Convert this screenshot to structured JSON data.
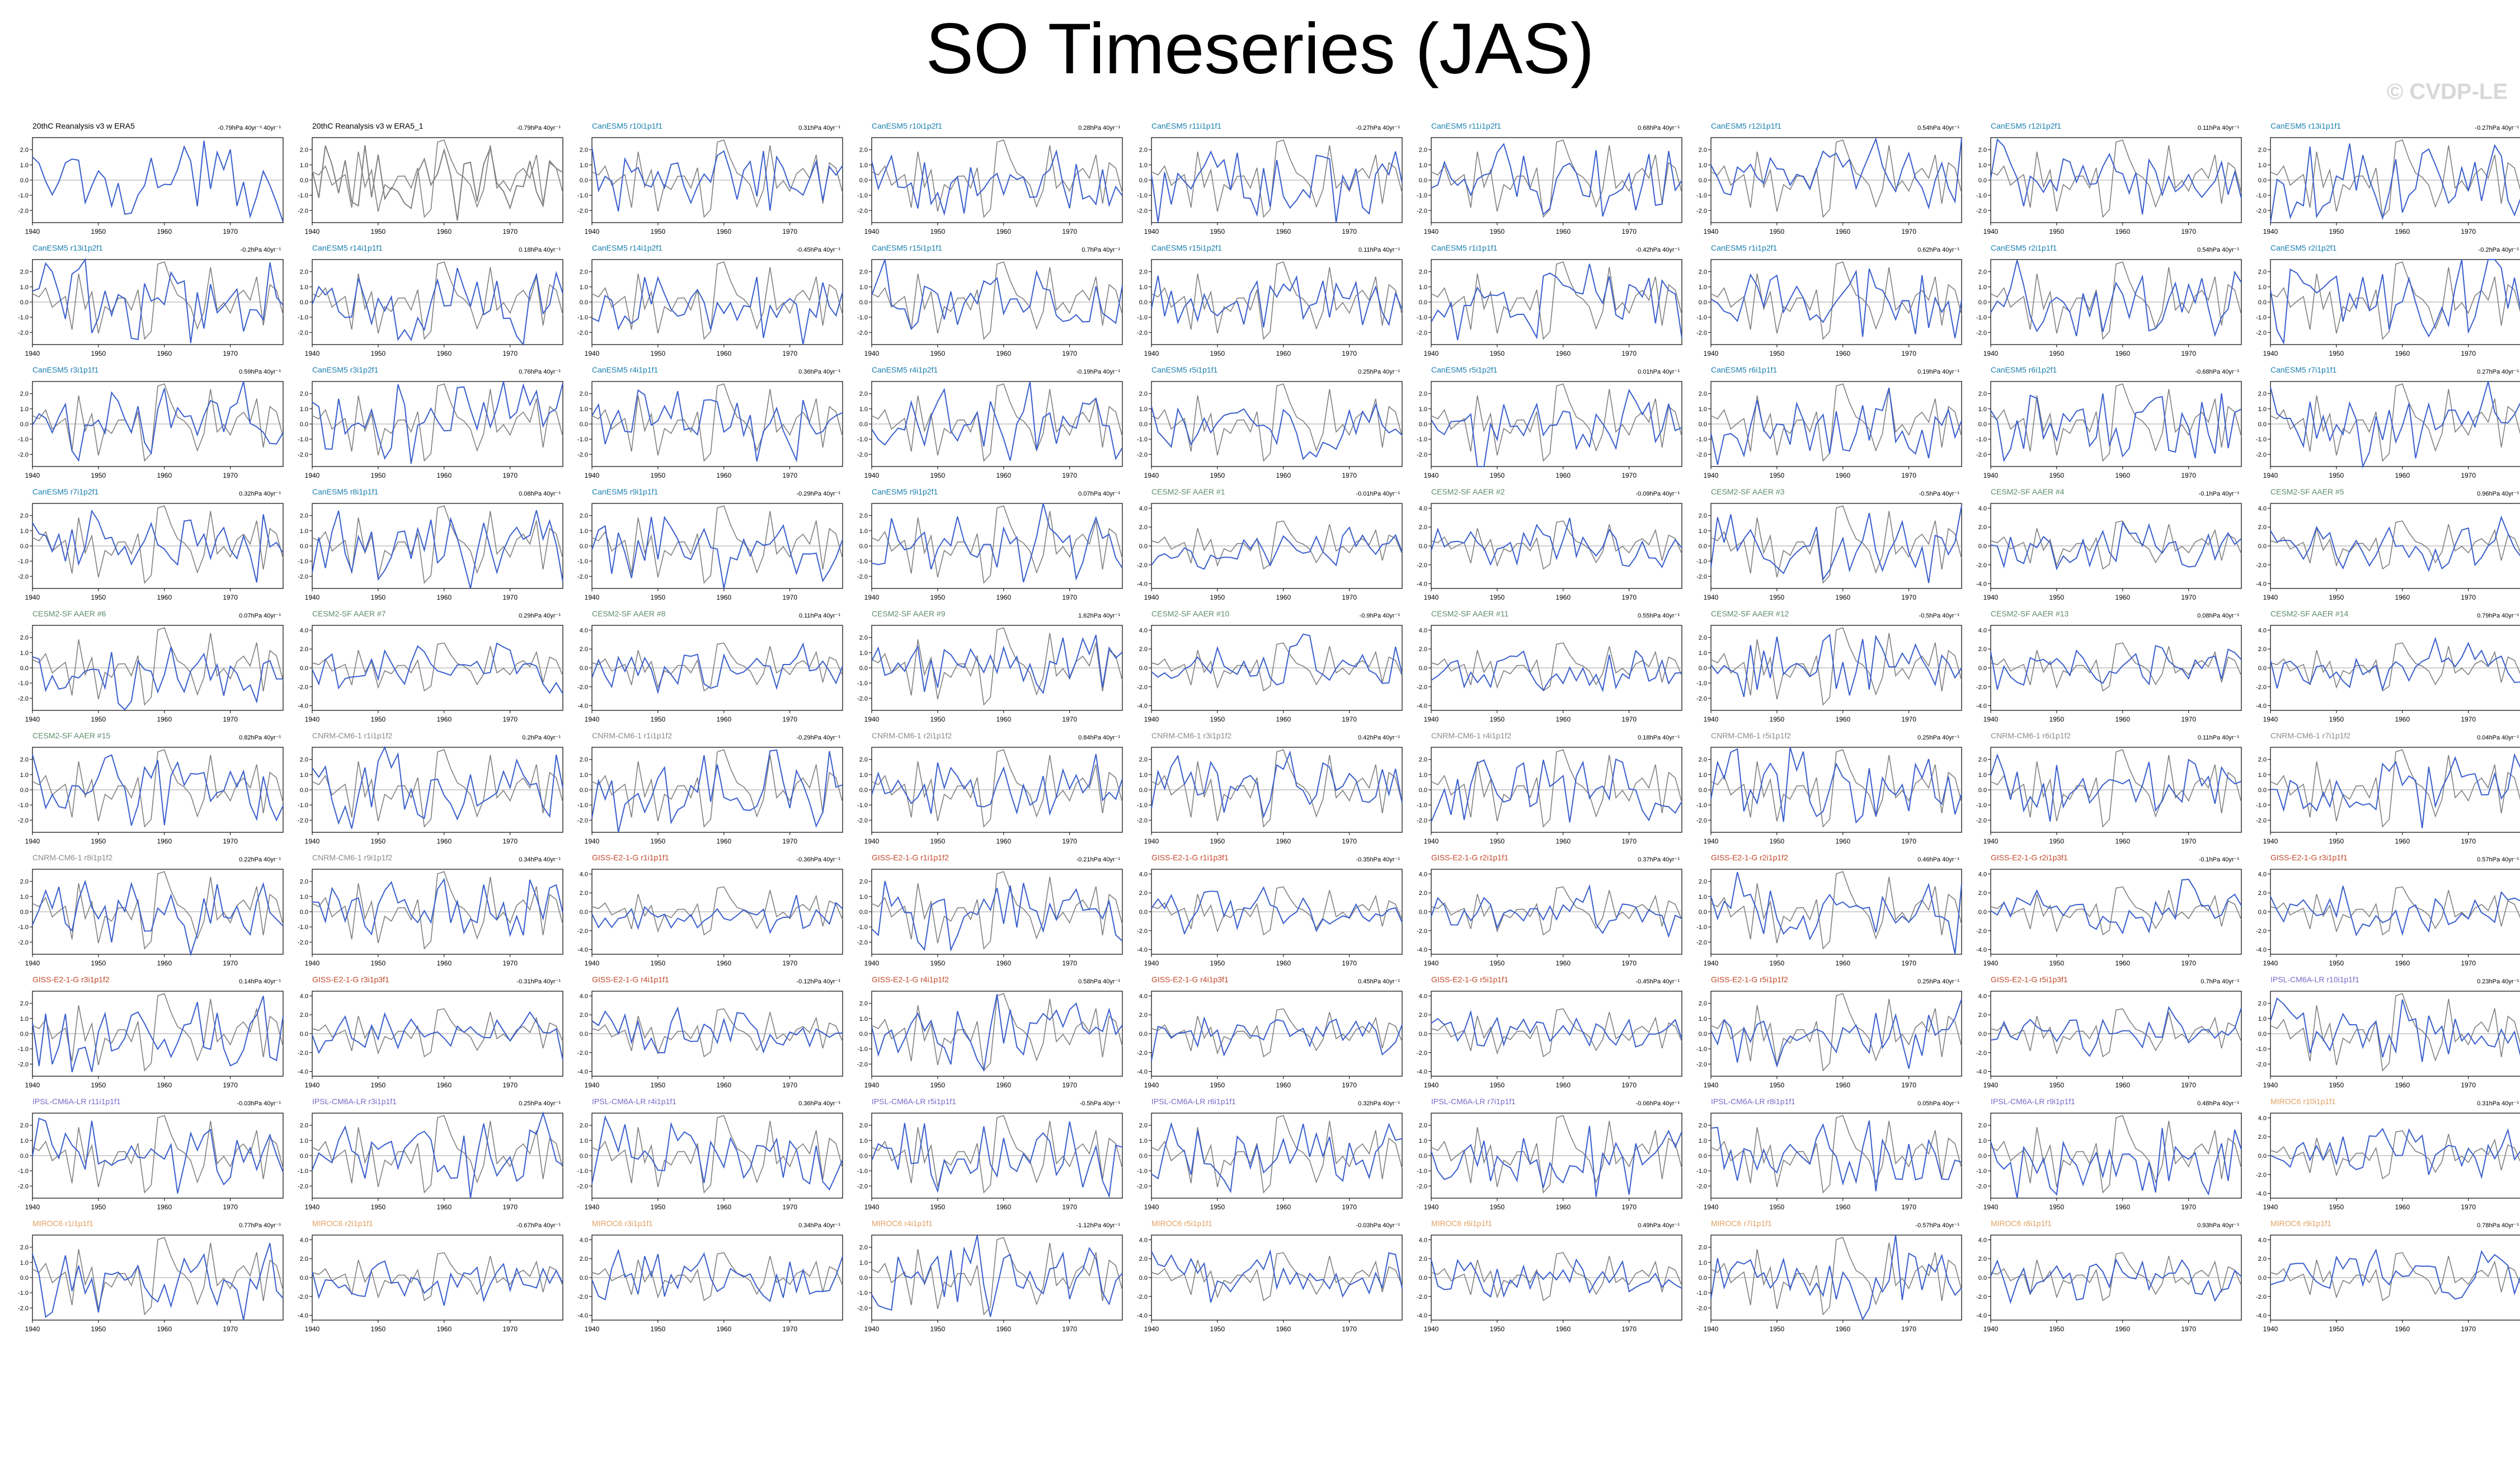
{
  "title": "SO Timeseries (JAS)",
  "watermark": "© CVDP-LE",
  "colors": {
    "model_line": "#3a5fcd",
    "obs_line": "#808080",
    "zero_line": "#a0a0a0",
    "title_20thc": "#000000",
    "title_canesm5": "#1a7fb0",
    "title_cesm2": "#5d8c6d",
    "title_cnrm": "#8a8a8a",
    "title_giss": "#c0482a",
    "title_ipsl": "#7b68c8",
    "title_miroc6": "#e0a060"
  },
  "chart_data": {
    "type": "line",
    "panel_count": 92,
    "xlim": [
      1940,
      1978
    ],
    "xticks": [
      1940,
      1950,
      1960,
      1970
    ],
    "yticks_2": [
      "2.0",
      "1.0",
      "0.0",
      "-1.0",
      "-2.0"
    ],
    "yticks_4": [
      "4.0",
      "2.0",
      "0.0",
      "-2.0",
      "-4.0"
    ],
    "panels": [
      {
        "name": "20thC Reanalysis v3 w ERA5",
        "trend": "-0.79hPa 40yr⁻¹ 40yr⁻¹",
        "family": "20thc"
      },
      {
        "name": "20thC Reanalysis v3 w ERA5_1",
        "trend": "-0.79hPa 40yr⁻¹",
        "family": "20thc"
      },
      {
        "name": "CanESM5 r10i1p1f1",
        "trend": "0.31hPa 40yr⁻¹",
        "family": "canesm5"
      },
      {
        "name": "CanESM5 r10i1p2f1",
        "trend": "0.28hPa 40yr⁻¹",
        "family": "canesm5"
      },
      {
        "name": "CanESM5 r11i1p1f1",
        "trend": "-0.27hPa 40yr⁻¹",
        "family": "canesm5"
      },
      {
        "name": "CanESM5 r11i1p2f1",
        "trend": "0.68hPa 40yr⁻¹",
        "family": "canesm5"
      },
      {
        "name": "CanESM5 r12i1p1f1",
        "trend": "0.54hPa 40yr⁻¹",
        "family": "canesm5"
      },
      {
        "name": "CanESM5 r12i1p2f1",
        "trend": "0.11hPa 40yr⁻¹",
        "family": "canesm5"
      },
      {
        "name": "CanESM5 r13i1p1f1",
        "trend": "-0.27hPa 40yr⁻¹",
        "family": "canesm5"
      },
      {
        "name": "CanESM5 r13i1p2f1",
        "trend": "-0.2hPa 40yr⁻¹",
        "family": "canesm5"
      },
      {
        "name": "CanESM5 r14i1p1f1",
        "trend": "0.18hPa 40yr⁻¹",
        "family": "canesm5"
      },
      {
        "name": "CanESM5 r14i1p2f1",
        "trend": "-0.45hPa 40yr⁻¹",
        "family": "canesm5"
      },
      {
        "name": "CanESM5 r15i1p1f1",
        "trend": "0.7hPa 40yr⁻¹",
        "family": "canesm5"
      },
      {
        "name": "CanESM5 r15i1p2f1",
        "trend": "0.11hPa 40yr⁻¹",
        "family": "canesm5"
      },
      {
        "name": "CanESM5 r1i1p1f1",
        "trend": "-0.42hPa 40yr⁻¹",
        "family": "canesm5"
      },
      {
        "name": "CanESM5 r1i1p2f1",
        "trend": "0.62hPa 40yr⁻¹",
        "family": "canesm5"
      },
      {
        "name": "CanESM5 r2i1p1f1",
        "trend": "0.54hPa 40yr⁻¹",
        "family": "canesm5"
      },
      {
        "name": "CanESM5 r2i1p2f1",
        "trend": "-0.2hPa 40yr⁻¹",
        "family": "canesm5"
      },
      {
        "name": "CanESM5 r3i1p1f1",
        "trend": "0.59hPa 40yr⁻¹",
        "family": "canesm5"
      },
      {
        "name": "CanESM5 r3i1p2f1",
        "trend": "0.76hPa 40yr⁻¹",
        "family": "canesm5"
      },
      {
        "name": "CanESM5 r4i1p1f1",
        "trend": "0.36hPa 40yr⁻¹",
        "family": "canesm5"
      },
      {
        "name": "CanESM5 r4i1p2f1",
        "trend": "-0.19hPa 40yr⁻¹",
        "family": "canesm5"
      },
      {
        "name": "CanESM5 r5i1p1f1",
        "trend": "0.25hPa 40yr⁻¹",
        "family": "canesm5"
      },
      {
        "name": "CanESM5 r5i1p2f1",
        "trend": "0.01hPa 40yr⁻¹",
        "family": "canesm5"
      },
      {
        "name": "CanESM5 r6i1p1f1",
        "trend": "0.19hPa 40yr⁻¹",
        "family": "canesm5"
      },
      {
        "name": "CanESM5 r6i1p2f1",
        "trend": "-0.68hPa 40yr⁻¹",
        "family": "canesm5"
      },
      {
        "name": "CanESM5 r7i1p1f1",
        "trend": "0.27hPa 40yr⁻¹",
        "family": "canesm5"
      },
      {
        "name": "CanESM5 r7i1p2f1",
        "trend": "0.32hPa 40yr⁻¹",
        "family": "canesm5"
      },
      {
        "name": "CanESM5 r8i1p1f1",
        "trend": "0.08hPa 40yr⁻¹",
        "family": "canesm5"
      },
      {
        "name": "CanESM5 r9i1p1f1",
        "trend": "-0.29hPa 40yr⁻¹",
        "family": "canesm5"
      },
      {
        "name": "CanESM5 r9i1p2f1",
        "trend": "0.07hPa 40yr⁻¹",
        "family": "canesm5"
      },
      {
        "name": "CESM2-SF AAER #1",
        "trend": "-0.01hPa 40yr⁻¹",
        "family": "cesm2"
      },
      {
        "name": "CESM2-SF AAER #2",
        "trend": "-0.09hPa 40yr⁻¹",
        "family": "cesm2"
      },
      {
        "name": "CESM2-SF AAER #3",
        "trend": "-0.5hPa 40yr⁻¹",
        "family": "cesm2"
      },
      {
        "name": "CESM2-SF AAER #4",
        "trend": "-0.1hPa 40yr⁻¹",
        "family": "cesm2"
      },
      {
        "name": "CESM2-SF AAER #5",
        "trend": "0.96hPa 40yr⁻¹",
        "family": "cesm2"
      },
      {
        "name": "CESM2-SF AAER #6",
        "trend": "0.07hPa 40yr⁻¹",
        "family": "cesm2"
      },
      {
        "name": "CESM2-SF AAER #7",
        "trend": "0.29hPa 40yr⁻¹",
        "family": "cesm2"
      },
      {
        "name": "CESM2-SF AAER #8",
        "trend": "0.11hPa 40yr⁻¹",
        "family": "cesm2"
      },
      {
        "name": "CESM2-SF AAER #9",
        "trend": "1.62hPa 40yr⁻¹",
        "family": "cesm2"
      },
      {
        "name": "CESM2-SF AAER #10",
        "trend": "-0.9hPa 40yr⁻¹",
        "family": "cesm2"
      },
      {
        "name": "CESM2-SF AAER #11",
        "trend": "0.55hPa 40yr⁻¹",
        "family": "cesm2"
      },
      {
        "name": "CESM2-SF AAER #12",
        "trend": "-0.5hPa 40yr⁻¹",
        "family": "cesm2"
      },
      {
        "name": "CESM2-SF AAER #13",
        "trend": "0.08hPa 40yr⁻¹",
        "family": "cesm2"
      },
      {
        "name": "CESM2-SF AAER #14",
        "trend": "0.79hPa 40yr⁻¹",
        "family": "cesm2"
      },
      {
        "name": "CESM2-SF AAER #15",
        "trend": "0.82hPa 40yr⁻¹",
        "family": "cesm2"
      },
      {
        "name": "CNRM-CM6-1 r1i1p1f2",
        "trend": "0.2hPa 40yr⁻¹",
        "family": "cnrm"
      },
      {
        "name": "CNRM-CM6-1 r1i1p1f2",
        "trend": "-0.29hPa 40yr⁻¹",
        "family": "cnrm"
      },
      {
        "name": "CNRM-CM6-1 r2i1p1f2",
        "trend": "0.84hPa 40yr⁻¹",
        "family": "cnrm"
      },
      {
        "name": "CNRM-CM6-1 r3i1p1f2",
        "trend": "0.42hPa 40yr⁻¹",
        "family": "cnrm"
      },
      {
        "name": "CNRM-CM6-1 r4i1p1f2",
        "trend": "0.18hPa 40yr⁻¹",
        "family": "cnrm"
      },
      {
        "name": "CNRM-CM6-1 r5i1p1f2",
        "trend": "0.25hPa 40yr⁻¹",
        "family": "cnrm"
      },
      {
        "name": "CNRM-CM6-1 r6i1p1f2",
        "trend": "0.11hPa 40yr⁻¹",
        "family": "cnrm"
      },
      {
        "name": "CNRM-CM6-1 r7i1p1f2",
        "trend": "0.04hPa 40yr⁻¹",
        "family": "cnrm"
      },
      {
        "name": "CNRM-CM6-1 r8i1p1f2",
        "trend": "0.22hPa 40yr⁻¹",
        "family": "cnrm"
      },
      {
        "name": "CNRM-CM6-1 r9i1p1f2",
        "trend": "0.34hPa 40yr⁻¹",
        "family": "cnrm"
      },
      {
        "name": "GISS-E2-1-G r1i1p1f1",
        "trend": "-0.36hPa 40yr⁻¹",
        "family": "giss"
      },
      {
        "name": "GISS-E2-1-G r1i1p1f2",
        "trend": "-0.21hPa 40yr⁻¹",
        "family": "giss"
      },
      {
        "name": "GISS-E2-1-G r1i1p3f1",
        "trend": "-0.35hPa 40yr⁻¹",
        "family": "giss"
      },
      {
        "name": "GISS-E2-1-G r2i1p1f1",
        "trend": "0.37hPa 40yr⁻¹",
        "family": "giss"
      },
      {
        "name": "GISS-E2-1-G r2i1p1f2",
        "trend": "0.46hPa 40yr⁻¹",
        "family": "giss"
      },
      {
        "name": "GISS-E2-1-G r2i1p3f1",
        "trend": "-0.1hPa 40yr⁻¹",
        "family": "giss"
      },
      {
        "name": "GISS-E2-1-G r3i1p1f1",
        "trend": "0.57hPa 40yr⁻¹",
        "family": "giss"
      },
      {
        "name": "GISS-E2-1-G r3i1p1f2",
        "trend": "0.14hPa 40yr⁻¹",
        "family": "giss"
      },
      {
        "name": "GISS-E2-1-G r3i1p3f1",
        "trend": "-0.31hPa 40yr⁻¹",
        "family": "giss"
      },
      {
        "name": "GISS-E2-1-G r4i1p1f1",
        "trend": "-0.12hPa 40yr⁻¹",
        "family": "giss"
      },
      {
        "name": "GISS-E2-1-G r4i1p1f2",
        "trend": "0.58hPa 40yr⁻¹",
        "family": "giss"
      },
      {
        "name": "GISS-E2-1-G r4i1p3f1",
        "trend": "0.45hPa 40yr⁻¹",
        "family": "giss"
      },
      {
        "name": "GISS-E2-1-G r5i1p1f1",
        "trend": "-0.45hPa 40yr⁻¹",
        "family": "giss"
      },
      {
        "name": "GISS-E2-1-G r5i1p1f2",
        "trend": "0.25hPa 40yr⁻¹",
        "family": "giss"
      },
      {
        "name": "GISS-E2-1-G r5i1p3f1",
        "trend": "0.7hPa 40yr⁻¹",
        "family": "giss"
      },
      {
        "name": "IPSL-CM6A-LR r10i1p1f1",
        "trend": "0.23hPa 40yr⁻¹",
        "family": "ipsl"
      },
      {
        "name": "IPSL-CM6A-LR r11i1p1f1",
        "trend": "-0.03hPa 40yr⁻¹",
        "family": "ipsl"
      },
      {
        "name": "IPSL-CM6A-LR r3i1p1f1",
        "trend": "0.25hPa 40yr⁻¹",
        "family": "ipsl"
      },
      {
        "name": "IPSL-CM6A-LR r4i1p1f1",
        "trend": "0.36hPa 40yr⁻¹",
        "family": "ipsl"
      },
      {
        "name": "IPSL-CM6A-LR r5i1p1f1",
        "trend": "-0.5hPa 40yr⁻¹",
        "family": "ipsl"
      },
      {
        "name": "IPSL-CM6A-LR r6i1p1f1",
        "trend": "0.32hPa 40yr⁻¹",
        "family": "ipsl"
      },
      {
        "name": "IPSL-CM6A-LR r7i1p1f1",
        "trend": "-0.06hPa 40yr⁻¹",
        "family": "ipsl"
      },
      {
        "name": "IPSL-CM6A-LR r8i1p1f1",
        "trend": "0.05hPa 40yr⁻¹",
        "family": "ipsl"
      },
      {
        "name": "IPSL-CM6A-LR r9i1p1f1",
        "trend": "0.48hPa 40yr⁻¹",
        "family": "ipsl"
      },
      {
        "name": "MIROC6 r10i1p1f1",
        "trend": "0.31hPa 40yr⁻¹",
        "family": "miroc6"
      },
      {
        "name": "MIROC6 r1i1p1f1",
        "trend": "0.77hPa 40yr⁻¹",
        "family": "miroc6"
      },
      {
        "name": "MIROC6 r2i1p1f1",
        "trend": "-0.67hPa 40yr⁻¹",
        "family": "miroc6"
      },
      {
        "name": "MIROC6 r3i1p1f1",
        "trend": "0.34hPa 40yr⁻¹",
        "family": "miroc6"
      },
      {
        "name": "MIROC6 r4i1p1f1",
        "trend": "-1.12hPa 40yr⁻¹",
        "family": "miroc6"
      },
      {
        "name": "MIROC6 r5i1p1f1",
        "trend": "-0.03hPa 40yr⁻¹",
        "family": "miroc6"
      },
      {
        "name": "MIROC6 r6i1p1f1",
        "trend": "0.49hPa 40yr⁻¹",
        "family": "miroc6"
      },
      {
        "name": "MIROC6 r7i1p1f1",
        "trend": "-0.57hPa 40yr⁻¹",
        "family": "miroc6"
      },
      {
        "name": "MIROC6 r8i1p1f1",
        "trend": "0.93hPa 40yr⁻¹",
        "family": "miroc6"
      },
      {
        "name": "MIROC6 r9i1p1f1",
        "trend": "0.78hPa 40yr⁻¹",
        "family": "miroc6"
      }
    ]
  }
}
